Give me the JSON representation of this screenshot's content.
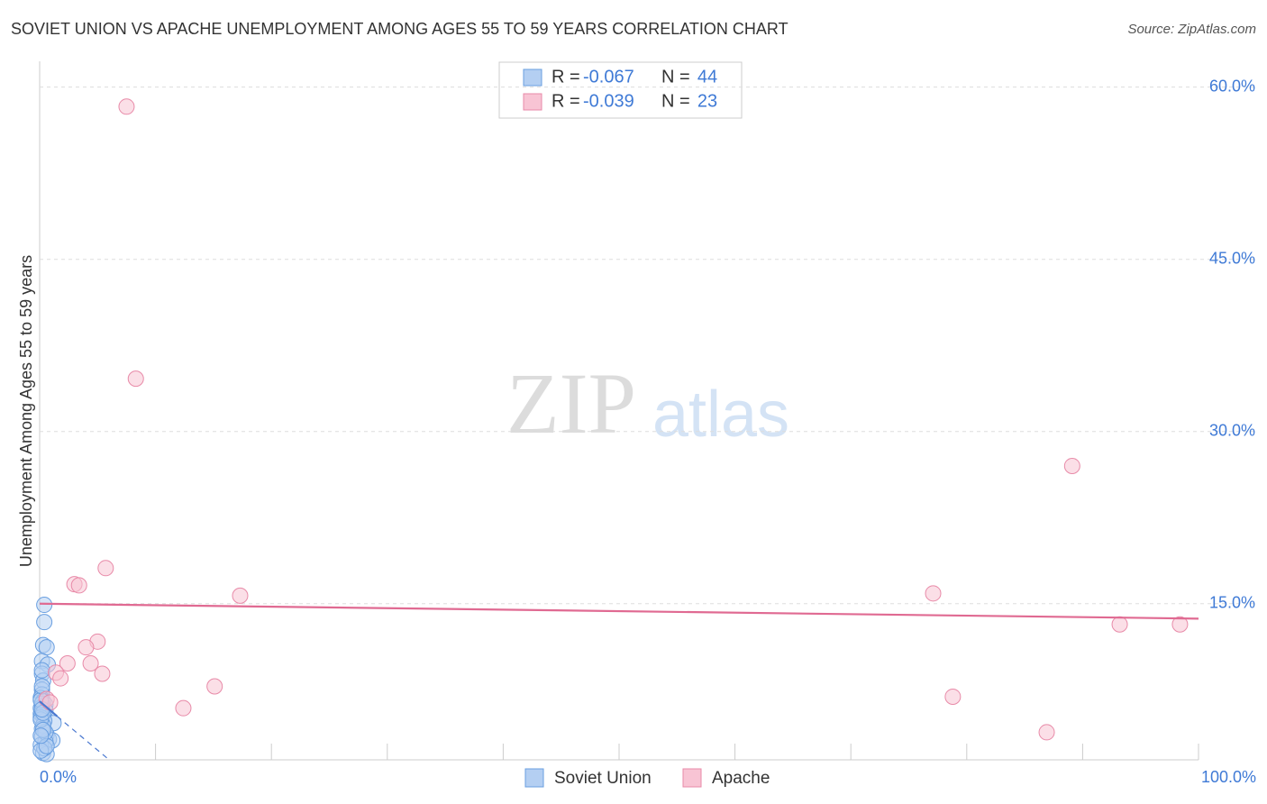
{
  "chart_data": {
    "type": "scatter",
    "title": "SOVIET UNION VS APACHE UNEMPLOYMENT AMONG AGES 55 TO 59 YEARS CORRELATION CHART",
    "source": "Source: ZipAtlas.com",
    "y_label": "Unemployment Among Ages 55 to 59 years",
    "watermark": [
      "ZIP",
      "atlas"
    ],
    "xlim": [
      0,
      100
    ],
    "ylim": [
      1.4,
      61.7
    ],
    "xticks": [
      0,
      10,
      20,
      30,
      40,
      50,
      60,
      70,
      80,
      90,
      100
    ],
    "xtick_labels": [
      {
        "value": 0,
        "label": "0.0%"
      },
      {
        "value": 100,
        "label": "100.0%"
      }
    ],
    "yticks": [
      {
        "value": 15,
        "label": "15.0%"
      },
      {
        "value": 30,
        "label": "30.0%"
      },
      {
        "value": 45,
        "label": "45.0%"
      },
      {
        "value": 60,
        "label": "60.0%"
      }
    ],
    "grid": true,
    "legend_r_label": "R =",
    "legend_n_label": "N =",
    "series": [
      {
        "name": "Soviet Union",
        "color": "#6a9fe0",
        "fill": "#b4cff2",
        "line_color": "#4a78d0",
        "r": -0.067,
        "n": 44,
        "x": [
          0.4,
          0.4,
          0.3,
          0.6,
          0.2,
          0.7,
          0.2,
          0.3,
          0.2,
          0.2,
          0.1,
          0.3,
          0.5,
          0.2,
          0.5,
          0.1,
          0.3,
          1.2,
          0.6,
          0.2,
          0.8,
          1.1,
          0.5,
          0.1,
          0.3,
          0.6,
          0.1,
          0.4,
          0.2,
          0.1,
          0.3,
          0.2,
          0.5,
          0.1,
          0.2,
          0.4,
          0.1,
          0.3,
          0.2,
          0.1,
          0.6,
          0.2,
          0.3,
          0.1
        ],
        "y": [
          14.9,
          13.4,
          11.4,
          11.2,
          10.0,
          9.7,
          8.9,
          8.3,
          7.5,
          7.1,
          6.8,
          6.5,
          6.2,
          6.0,
          5.7,
          5.4,
          5.2,
          4.6,
          3.6,
          3.4,
          3.2,
          3.1,
          3.0,
          2.7,
          2.0,
          1.9,
          5.9,
          4.8,
          6.3,
          5.1,
          4.4,
          4.1,
          3.8,
          6.6,
          7.8,
          2.4,
          4.9,
          5.5,
          9.2,
          2.2,
          2.6,
          5.8,
          4.0,
          3.5
        ],
        "trend": {
          "x": [
            0,
            1.5
          ],
          "y": [
            6.5,
            5.2
          ]
        },
        "trend_extension": {
          "x": [
            1.5,
            6
          ],
          "y": [
            5.2,
            1.4
          ]
        }
      },
      {
        "name": "Apache",
        "color": "#e88aa8",
        "fill": "#f8c4d4",
        "line_color": "#e06a92",
        "r": -0.039,
        "n": 23,
        "x": [
          7.5,
          8.3,
          89.1,
          5.7,
          3.0,
          3.4,
          17.3,
          77.1,
          93.2,
          98.4,
          5.0,
          4.0,
          2.4,
          4.4,
          5.4,
          1.4,
          1.8,
          15.1,
          78.8,
          12.4,
          86.9,
          0.6,
          0.9
        ],
        "y": [
          58.3,
          34.6,
          27.0,
          18.1,
          16.7,
          16.6,
          15.7,
          15.9,
          13.2,
          13.2,
          11.7,
          11.2,
          9.8,
          9.8,
          8.9,
          9.0,
          8.5,
          7.8,
          6.9,
          5.9,
          3.8,
          6.7,
          6.4
        ],
        "trend": {
          "x": [
            0,
            100
          ],
          "y": [
            15.0,
            13.7
          ]
        }
      }
    ]
  }
}
